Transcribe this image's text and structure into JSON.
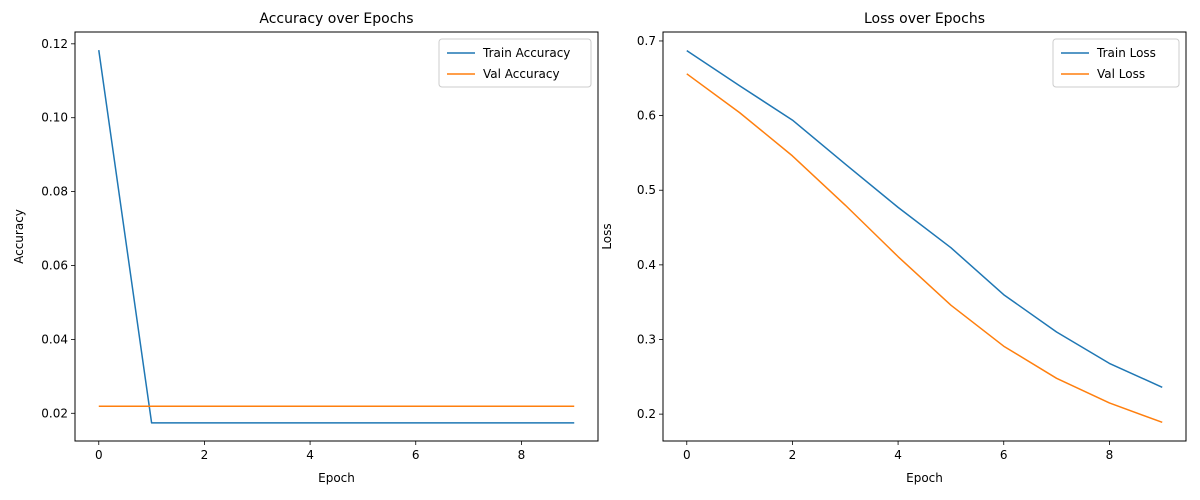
{
  "chart_data": [
    {
      "type": "line",
      "title": "Accuracy over Epochs",
      "xlabel": "Epoch",
      "ylabel": "Accuracy",
      "x": [
        0,
        1,
        2,
        3,
        4,
        5,
        6,
        7,
        8,
        9
      ],
      "xlim": [
        -0.45,
        9.45
      ],
      "ylim": [
        0.0125,
        0.1232
      ],
      "xticks": [
        0,
        2,
        4,
        6,
        8
      ],
      "xtick_labels": [
        "0",
        "2",
        "4",
        "6",
        "8"
      ],
      "yticks": [
        0.02,
        0.04,
        0.06,
        0.08,
        0.1,
        0.12
      ],
      "ytick_labels": [
        "0.02",
        "0.04",
        "0.06",
        "0.08",
        "0.10",
        "0.12"
      ],
      "grid": false,
      "legend_position": "upper right",
      "series": [
        {
          "name": "Train Accuracy",
          "color": "#1f77b4",
          "values": [
            0.1183,
            0.0174,
            0.0174,
            0.0174,
            0.0174,
            0.0174,
            0.0174,
            0.0174,
            0.0174,
            0.0174
          ]
        },
        {
          "name": "Val Accuracy",
          "color": "#ff7f0e",
          "values": [
            0.0219,
            0.0219,
            0.0219,
            0.0219,
            0.0219,
            0.0219,
            0.0219,
            0.0219,
            0.0219,
            0.0219
          ]
        }
      ]
    },
    {
      "type": "line",
      "title": "Loss over Epochs",
      "xlabel": "Epoch",
      "ylabel": "Loss",
      "x": [
        0,
        1,
        2,
        3,
        4,
        5,
        6,
        7,
        8,
        9
      ],
      "xlim": [
        -0.45,
        9.45
      ],
      "ylim": [
        0.164,
        0.712
      ],
      "xticks": [
        0,
        2,
        4,
        6,
        8
      ],
      "xtick_labels": [
        "0",
        "2",
        "4",
        "6",
        "8"
      ],
      "yticks": [
        0.2,
        0.3,
        0.4,
        0.5,
        0.6,
        0.7
      ],
      "ytick_labels": [
        "0.2",
        "0.3",
        "0.4",
        "0.5",
        "0.6",
        "0.7"
      ],
      "grid": false,
      "legend_position": "upper right",
      "series": [
        {
          "name": "Train Loss",
          "color": "#1f77b4",
          "values": [
            0.687,
            0.64,
            0.594,
            0.535,
            0.477,
            0.423,
            0.36,
            0.31,
            0.268,
            0.236
          ]
        },
        {
          "name": "Val Loss",
          "color": "#ff7f0e",
          "values": [
            0.656,
            0.604,
            0.546,
            0.48,
            0.411,
            0.346,
            0.291,
            0.248,
            0.215,
            0.189
          ]
        }
      ]
    }
  ]
}
